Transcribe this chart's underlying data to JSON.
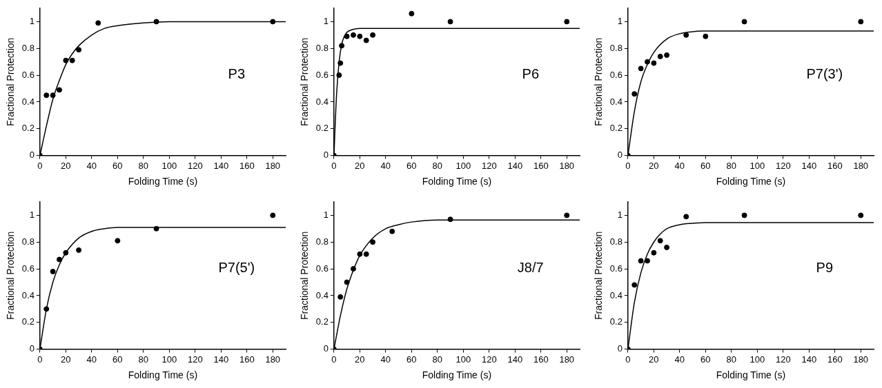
{
  "chart_data": [
    {
      "type": "scatter",
      "xlabel": "Folding Time (s)",
      "ylabel": "Fractional Protection",
      "annotations": [
        "P3"
      ],
      "grid": false,
      "xlim": [
        0,
        190
      ],
      "ylim": [
        0,
        1.1
      ],
      "xticks": [
        0,
        20,
        40,
        60,
        80,
        100,
        120,
        140,
        160,
        180
      ],
      "yticks": [
        0,
        0.2,
        0.4,
        0.6,
        0.8,
        1
      ],
      "series": [
        {
          "type": "scatter",
          "marker": "circle",
          "color": "#000000",
          "x": [
            0,
            5,
            10,
            15,
            20,
            25,
            30,
            45,
            90,
            180
          ],
          "values": [
            0,
            0.45,
            0.45,
            0.49,
            0.71,
            0.71,
            0.79,
            0.99,
            1.0,
            1.0
          ]
        },
        {
          "type": "line",
          "marker": "none",
          "color": "#000000",
          "x": [
            0,
            5,
            10,
            15,
            20,
            25,
            30,
            40,
            50,
            60,
            80,
            100,
            140,
            190
          ],
          "values": [
            0,
            0.22,
            0.42,
            0.56,
            0.68,
            0.76,
            0.82,
            0.9,
            0.95,
            0.97,
            0.99,
            1,
            1,
            1
          ]
        }
      ]
    },
    {
      "type": "scatter",
      "xlabel": "Folding Time (s)",
      "ylabel": "Fractional Protection",
      "annotations": [
        "P6"
      ],
      "grid": false,
      "xlim": [
        0,
        190
      ],
      "ylim": [
        0,
        1.1
      ],
      "xticks": [
        0,
        20,
        40,
        60,
        80,
        100,
        120,
        140,
        160,
        180
      ],
      "yticks": [
        0,
        0.2,
        0.4,
        0.6,
        0.8,
        1
      ],
      "series": [
        {
          "type": "scatter",
          "marker": "circle",
          "color": "#000000",
          "x": [
            0,
            4,
            5,
            6,
            10,
            15,
            20,
            25,
            30,
            60,
            90,
            180
          ],
          "values": [
            0,
            0.6,
            0.69,
            0.82,
            0.89,
            0.9,
            0.89,
            0.86,
            0.9,
            1.06,
            1.0,
            1.0
          ]
        },
        {
          "type": "line",
          "marker": "none",
          "color": "#000000",
          "x": [
            0,
            2,
            4,
            6,
            8,
            10,
            14,
            20,
            30,
            190
          ],
          "values": [
            0,
            0.45,
            0.7,
            0.83,
            0.89,
            0.92,
            0.94,
            0.95,
            0.95,
            0.95
          ]
        }
      ]
    },
    {
      "type": "scatter",
      "xlabel": "Folding Time (s)",
      "ylabel": "Fractional Protection",
      "annotations": [
        "P7(3')"
      ],
      "grid": false,
      "xlim": [
        0,
        190
      ],
      "ylim": [
        0,
        1.1
      ],
      "xticks": [
        0,
        20,
        40,
        60,
        80,
        100,
        120,
        140,
        160,
        180
      ],
      "yticks": [
        0,
        0.2,
        0.4,
        0.6,
        0.8,
        1
      ],
      "series": [
        {
          "type": "scatter",
          "marker": "circle",
          "color": "#000000",
          "x": [
            0,
            5,
            10,
            15,
            20,
            25,
            30,
            45,
            60,
            90,
            180
          ],
          "values": [
            0,
            0.46,
            0.65,
            0.7,
            0.69,
            0.74,
            0.75,
            0.9,
            0.89,
            1.0,
            1.0
          ]
        },
        {
          "type": "line",
          "marker": "none",
          "color": "#000000",
          "x": [
            0,
            5,
            10,
            15,
            20,
            30,
            40,
            50,
            60,
            80,
            190
          ],
          "values": [
            0,
            0.33,
            0.55,
            0.68,
            0.77,
            0.87,
            0.91,
            0.925,
            0.93,
            0.93,
            0.93
          ]
        }
      ]
    },
    {
      "type": "scatter",
      "xlabel": "Folding Time (s)",
      "ylabel": "Fractional Protection",
      "annotations": [
        "P7(5')"
      ],
      "grid": false,
      "xlim": [
        0,
        190
      ],
      "ylim": [
        0,
        1.1
      ],
      "xticks": [
        0,
        20,
        40,
        60,
        80,
        100,
        120,
        140,
        160,
        180
      ],
      "yticks": [
        0,
        0.2,
        0.4,
        0.6,
        0.8,
        1
      ],
      "series": [
        {
          "type": "scatter",
          "marker": "circle",
          "color": "#000000",
          "x": [
            0,
            5,
            10,
            15,
            20,
            30,
            60,
            90,
            180
          ],
          "values": [
            0,
            0.3,
            0.58,
            0.67,
            0.72,
            0.74,
            0.81,
            0.9,
            1.0
          ]
        },
        {
          "type": "line",
          "marker": "none",
          "color": "#000000",
          "x": [
            0,
            5,
            10,
            15,
            20,
            30,
            40,
            50,
            60,
            190
          ],
          "values": [
            0,
            0.3,
            0.5,
            0.63,
            0.72,
            0.83,
            0.88,
            0.9,
            0.91,
            0.91
          ]
        }
      ]
    },
    {
      "type": "scatter",
      "xlabel": "Folding Time (s)",
      "ylabel": "Fractional Protection",
      "annotations": [
        "J8/7"
      ],
      "grid": false,
      "xlim": [
        0,
        190
      ],
      "ylim": [
        0,
        1.1
      ],
      "xticks": [
        0,
        20,
        40,
        60,
        80,
        100,
        120,
        140,
        160,
        180
      ],
      "yticks": [
        0,
        0.2,
        0.4,
        0.6,
        0.8,
        1
      ],
      "series": [
        {
          "type": "scatter",
          "marker": "circle",
          "color": "#000000",
          "x": [
            0,
            5,
            10,
            15,
            20,
            25,
            30,
            45,
            90,
            180
          ],
          "values": [
            0,
            0.39,
            0.5,
            0.6,
            0.71,
            0.71,
            0.8,
            0.88,
            0.97,
            1.0
          ]
        },
        {
          "type": "line",
          "marker": "none",
          "color": "#000000",
          "x": [
            0,
            5,
            10,
            15,
            20,
            30,
            40,
            50,
            60,
            80,
            190
          ],
          "values": [
            0,
            0.25,
            0.45,
            0.59,
            0.7,
            0.83,
            0.9,
            0.93,
            0.95,
            0.965,
            0.965
          ]
        }
      ]
    },
    {
      "type": "scatter",
      "xlabel": "Folding Time (s)",
      "ylabel": "Fractional Protection",
      "annotations": [
        "P9"
      ],
      "grid": false,
      "xlim": [
        0,
        190
      ],
      "ylim": [
        0,
        1.1
      ],
      "xticks": [
        0,
        20,
        40,
        60,
        80,
        100,
        120,
        140,
        160,
        180
      ],
      "yticks": [
        0,
        0.2,
        0.4,
        0.6,
        0.8,
        1
      ],
      "series": [
        {
          "type": "scatter",
          "marker": "circle",
          "color": "#000000",
          "x": [
            0,
            5,
            10,
            15,
            20,
            25,
            30,
            45,
            90,
            180
          ],
          "values": [
            0,
            0.48,
            0.66,
            0.66,
            0.72,
            0.81,
            0.76,
            0.99,
            1.0,
            1.0
          ]
        },
        {
          "type": "line",
          "marker": "none",
          "color": "#000000",
          "x": [
            0,
            5,
            10,
            15,
            20,
            25,
            30,
            40,
            50,
            60,
            80,
            190
          ],
          "values": [
            0,
            0.35,
            0.57,
            0.71,
            0.8,
            0.86,
            0.9,
            0.93,
            0.94,
            0.945,
            0.945,
            0.945
          ]
        }
      ]
    }
  ]
}
